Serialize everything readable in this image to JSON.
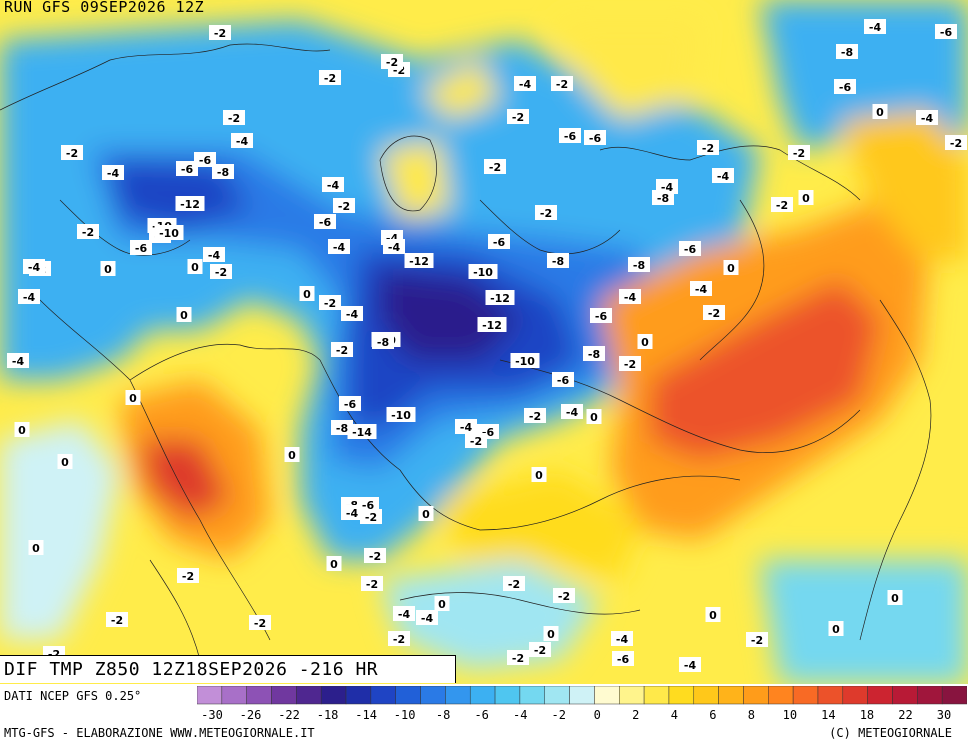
{
  "run_title": "RUN GFS 09SEP2026 12Z",
  "field_title": "DIF TMP Z850 12Z18SEP2026 -216 HR",
  "source_label": "DATI NCEP GFS 0.25°",
  "footer_left": "MTG-GFS - ELABORAZIONE WWW.METEOGIORNALE.IT",
  "footer_right": "(C) METEOGIORNALE",
  "legend": {
    "colors": [
      "#c28fd8",
      "#a870c8",
      "#8d52b5",
      "#70389f",
      "#4f2790",
      "#2c1f8c",
      "#1f2ea8",
      "#1f44c4",
      "#2160d8",
      "#2a7ae6",
      "#3396ee",
      "#3cb0f2",
      "#4fc6f0",
      "#74d8f0",
      "#a0e6f2",
      "#cff2f6",
      "#fffbd0",
      "#fff48c",
      "#ffe94a",
      "#ffdc1f",
      "#ffc81a",
      "#ffb31a",
      "#ff9c1a",
      "#ff841f",
      "#f86a25",
      "#ec522a",
      "#de3a2c",
      "#cc2430",
      "#b81a36",
      "#a0163c",
      "#88143f"
    ],
    "tick_labels": [
      "-30",
      "-26",
      "-22",
      "-18",
      "-14",
      "-10",
      "-8",
      "-6",
      "-4",
      "-2",
      "0",
      "2",
      "4",
      "6",
      "8",
      "10",
      "14",
      "18",
      "22",
      "30"
    ]
  },
  "map_labels": [
    {
      "text": "-2"
    },
    {
      "text": "-6"
    },
    {
      "text": "-8"
    },
    {
      "text": "-6"
    },
    {
      "text": "-4"
    },
    {
      "text": "-2"
    },
    {
      "text": "-2"
    },
    {
      "text": "-4"
    },
    {
      "text": "-2"
    },
    {
      "text": "-8"
    },
    {
      "text": "-6"
    },
    {
      "text": "-2"
    },
    {
      "text": "-2"
    },
    {
      "text": "-4"
    },
    {
      "text": "-2"
    },
    {
      "text": "-6"
    },
    {
      "text": "0"
    },
    {
      "text": "-4"
    },
    {
      "text": "-2"
    },
    {
      "text": "-4"
    },
    {
      "text": "-6"
    },
    {
      "text": "-6"
    },
    {
      "text": "-2"
    },
    {
      "text": "-2"
    },
    {
      "text": "-10"
    },
    {
      "text": "-8"
    },
    {
      "text": "-4"
    },
    {
      "text": "-4"
    },
    {
      "text": "-2"
    },
    {
      "text": "-4"
    },
    {
      "text": "-8"
    },
    {
      "text": "-4"
    },
    {
      "text": "-2"
    },
    {
      "text": "0"
    },
    {
      "text": "-12"
    },
    {
      "text": "-2"
    },
    {
      "text": "-6"
    },
    {
      "text": "-4"
    },
    {
      "text": "-10"
    },
    {
      "text": "-2"
    },
    {
      "text": "-4"
    },
    {
      "text": "-8"
    },
    {
      "text": "-2"
    },
    {
      "text": "-6"
    },
    {
      "text": "-4"
    },
    {
      "text": "-6"
    },
    {
      "text": "-6"
    },
    {
      "text": "-2"
    },
    {
      "text": "-4"
    },
    {
      "text": "-2"
    },
    {
      "text": "0"
    },
    {
      "text": "0"
    },
    {
      "text": "-4"
    },
    {
      "text": "-2"
    },
    {
      "text": "-12"
    },
    {
      "text": "-10"
    },
    {
      "text": "-8"
    },
    {
      "text": "-8"
    },
    {
      "text": "0"
    },
    {
      "text": "-4"
    },
    {
      "text": "0"
    },
    {
      "text": "-2"
    },
    {
      "text": "-4"
    },
    {
      "text": "-12"
    },
    {
      "text": "-4"
    },
    {
      "text": "-2"
    },
    {
      "text": "0"
    },
    {
      "text": "-6"
    },
    {
      "text": "-12"
    },
    {
      "text": "-4"
    },
    {
      "text": "-10"
    },
    {
      "text": "-8"
    },
    {
      "text": "-2"
    },
    {
      "text": "0"
    },
    {
      "text": "-2"
    },
    {
      "text": "-10"
    },
    {
      "text": "-2"
    },
    {
      "text": "-6"
    },
    {
      "text": "0"
    },
    {
      "text": "-6"
    },
    {
      "text": "-10"
    },
    {
      "text": "-2"
    },
    {
      "text": "-4"
    },
    {
      "text": "0"
    },
    {
      "text": "-8"
    },
    {
      "text": "-14"
    },
    {
      "text": "-4"
    },
    {
      "text": "-6"
    },
    {
      "text": "-2"
    },
    {
      "text": "0"
    },
    {
      "text": "0"
    },
    {
      "text": "0"
    },
    {
      "text": "0"
    },
    {
      "text": "-8"
    },
    {
      "text": "-4"
    },
    {
      "text": "-2"
    },
    {
      "text": "-6"
    },
    {
      "text": "0"
    },
    {
      "text": "0"
    },
    {
      "text": "-2"
    },
    {
      "text": "0"
    },
    {
      "text": "-2"
    },
    {
      "text": "-2"
    },
    {
      "text": "-2"
    },
    {
      "text": "0"
    },
    {
      "text": "-2"
    },
    {
      "text": "-4"
    },
    {
      "text": "-4"
    },
    {
      "text": "0"
    },
    {
      "text": "0"
    },
    {
      "text": "0"
    },
    {
      "text": "-2"
    },
    {
      "text": "-2"
    },
    {
      "text": "-2"
    },
    {
      "text": "-4"
    },
    {
      "text": "-2"
    },
    {
      "text": "-2"
    },
    {
      "text": "0"
    },
    {
      "text": "-2"
    },
    {
      "text": "-6"
    },
    {
      "text": "-2"
    },
    {
      "text": "-4"
    },
    {
      "text": "-2"
    }
  ]
}
